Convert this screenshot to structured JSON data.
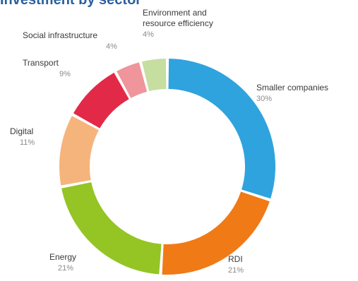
{
  "chart_data": {
    "type": "pie",
    "style": "donut",
    "title": "Investment by sector",
    "categories": [
      "Smaller companies",
      "RDI",
      "Energy",
      "Digital",
      "Transport",
      "Social infrastructure",
      "Environment and resource efficiency"
    ],
    "values": [
      30,
      21,
      21,
      11,
      9,
      4,
      4
    ],
    "value_labels": [
      "30%",
      "21%",
      "21%",
      "11%",
      "9%",
      "4%",
      "4%"
    ],
    "colors": [
      "#2fa3de",
      "#f07a16",
      "#94c524",
      "#f6b47d",
      "#e22a48",
      "#f0959b",
      "#c6dea0"
    ],
    "label_lines": [
      [
        "Smaller companies"
      ],
      [
        "RDI"
      ],
      [
        "Energy"
      ],
      [
        "Digital"
      ],
      [
        "Transport"
      ],
      [
        "Social infrastructure"
      ],
      [
        "Environment and",
        "resource efficiency"
      ]
    ],
    "legend": "none"
  }
}
